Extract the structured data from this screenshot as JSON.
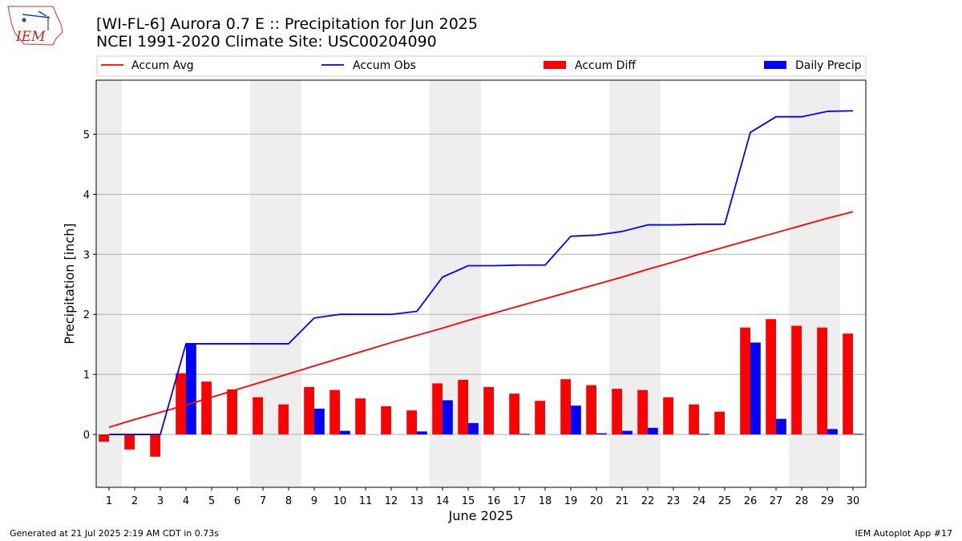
{
  "logo_text": "IEM",
  "title_line1": "[WI-FL-6] Aurora 0.7 E :: Precipitation for Jun 2025",
  "title_line2": "NCEI 1991-2020 Climate Site: USC00204090",
  "footer_left": "Generated at 21 Jul 2025 2:19 AM CDT in 0.73s",
  "footer_right": "IEM Autoplot App #17",
  "colors": {
    "accum_avg": "#ff0000",
    "accum_obs": "#0000ff",
    "accum_diff": "#ff0000",
    "daily_precip": "#0000ff",
    "weekend_shade": "#eeeeee",
    "grid": "#b0b0b0"
  },
  "chart_data": {
    "type": "bar",
    "xlabel": "June 2025",
    "ylabel": "Precipitation [inch]",
    "ylim": [
      -0.88,
      5.9
    ],
    "yticks": [
      0,
      1,
      2,
      3,
      4,
      5
    ],
    "grid": "horizontal",
    "legend_position": "top",
    "days": [
      1,
      2,
      3,
      4,
      5,
      6,
      7,
      8,
      9,
      10,
      11,
      12,
      13,
      14,
      15,
      16,
      17,
      18,
      19,
      20,
      21,
      22,
      23,
      24,
      25,
      26,
      27,
      28,
      29,
      30
    ],
    "shaded_days": [
      1,
      7,
      8,
      14,
      15,
      21,
      22,
      28,
      29
    ],
    "series": [
      {
        "name": "Accum Avg",
        "kind": "line",
        "values": [
          0.12,
          0.25,
          0.37,
          0.49,
          0.62,
          0.75,
          0.88,
          1.01,
          1.14,
          1.27,
          1.4,
          1.53,
          1.65,
          1.77,
          1.9,
          2.02,
          2.14,
          2.26,
          2.38,
          2.5,
          2.62,
          2.75,
          2.87,
          3.0,
          3.12,
          3.24,
          3.36,
          3.48,
          3.6,
          3.71
        ]
      },
      {
        "name": "Accum Obs",
        "kind": "line",
        "values": [
          0.0,
          0.0,
          0.0,
          1.51,
          1.51,
          1.51,
          1.51,
          1.51,
          1.94,
          2.0,
          2.0,
          2.0,
          2.05,
          2.62,
          2.81,
          2.81,
          2.82,
          2.82,
          3.3,
          3.32,
          3.38,
          3.49,
          3.49,
          3.5,
          3.5,
          5.03,
          5.29,
          5.29,
          5.38,
          5.39
        ]
      },
      {
        "name": "Accum Diff",
        "kind": "bar",
        "values": [
          -0.12,
          -0.25,
          -0.37,
          1.02,
          0.88,
          0.75,
          0.62,
          0.5,
          0.79,
          0.74,
          0.6,
          0.47,
          0.4,
          0.85,
          0.91,
          0.79,
          0.68,
          0.56,
          0.92,
          0.82,
          0.76,
          0.74,
          0.62,
          0.5,
          0.38,
          1.78,
          1.92,
          1.81,
          1.78,
          1.68
        ]
      },
      {
        "name": "Daily Precip",
        "kind": "bar",
        "values": [
          0,
          0,
          0,
          1.51,
          0,
          0,
          0,
          0,
          0.43,
          0.06,
          0,
          0,
          0.05,
          0.57,
          0.19,
          0,
          0.01,
          0,
          0.48,
          0.02,
          0.06,
          0.11,
          0,
          0.01,
          0,
          1.53,
          0.26,
          0,
          0.09,
          0.01
        ]
      }
    ]
  }
}
